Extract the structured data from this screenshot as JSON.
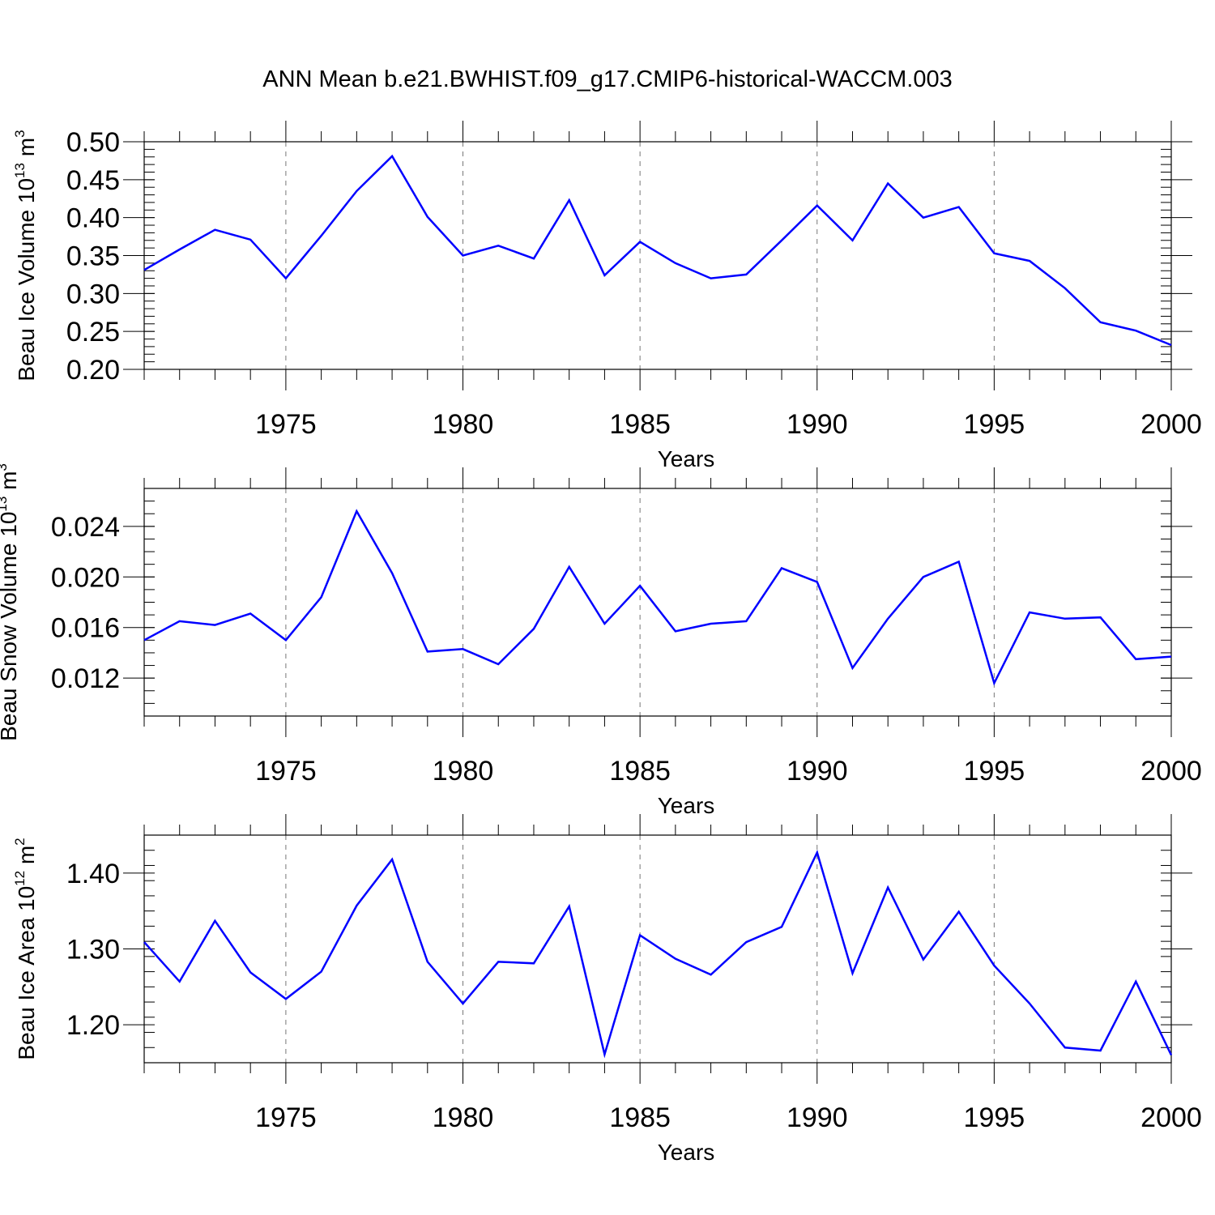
{
  "title": "ANN Mean b.e21.BWHIST.f09_g17.CMIP6-historical-WACCM.003",
  "line_color": "#0000ff",
  "chart_data": [
    {
      "type": "line",
      "ylabel": "Beau Ice Volume 10",
      "ylabel_exp": "13",
      "ylabel_unit": " m",
      "ylabel_unit_exp": "3",
      "xlabel": "Years",
      "xlim": [
        1971,
        2000
      ],
      "ylim": [
        0.2,
        0.5
      ],
      "yticks": [
        0.2,
        0.25,
        0.3,
        0.35,
        0.4,
        0.45,
        0.5
      ],
      "yticklabels": [
        "0.20",
        "0.25",
        "0.30",
        "0.35",
        "0.40",
        "0.45",
        "0.50"
      ],
      "yminor": 0.01,
      "xticks": [
        1975,
        1980,
        1985,
        1990,
        1995,
        2000
      ],
      "xticklabels": [
        "1975",
        "1980",
        "1985",
        "1990",
        "1995",
        "2000"
      ],
      "grid_x": true,
      "x": [
        1971,
        1972,
        1973,
        1974,
        1975,
        1976,
        1977,
        1978,
        1979,
        1980,
        1981,
        1982,
        1983,
        1984,
        1985,
        1986,
        1987,
        1988,
        1989,
        1990,
        1991,
        1992,
        1993,
        1994,
        1995,
        1996,
        1997,
        1998,
        1999,
        2000
      ],
      "values": [
        0.331,
        0.358,
        0.384,
        0.371,
        0.32,
        0.376,
        0.435,
        0.481,
        0.401,
        0.35,
        0.363,
        0.346,
        0.423,
        0.324,
        0.368,
        0.34,
        0.32,
        0.325,
        0.37,
        0.416,
        0.37,
        0.445,
        0.4,
        0.414,
        0.353,
        0.343,
        0.307,
        0.262,
        0.251,
        0.232
      ]
    },
    {
      "type": "line",
      "ylabel": "Beau Snow Volume 10",
      "ylabel_exp": "13",
      "ylabel_unit": " m",
      "ylabel_unit_exp": "3",
      "xlabel": "Years",
      "xlim": [
        1971,
        2000
      ],
      "ylim": [
        0.009,
        0.027
      ],
      "yticks": [
        0.012,
        0.016,
        0.02,
        0.024
      ],
      "yticklabels": [
        "0.012",
        "0.016",
        "0.020",
        "0.024"
      ],
      "yminor": 0.001,
      "xticks": [
        1975,
        1980,
        1985,
        1990,
        1995,
        2000
      ],
      "xticklabels": [
        "1975",
        "1980",
        "1985",
        "1990",
        "1995",
        "2000"
      ],
      "grid_x": true,
      "x": [
        1971,
        1972,
        1973,
        1974,
        1975,
        1976,
        1977,
        1978,
        1979,
        1980,
        1981,
        1982,
        1983,
        1984,
        1985,
        1986,
        1987,
        1988,
        1989,
        1990,
        1991,
        1992,
        1993,
        1994,
        1995,
        1996,
        1997,
        1998,
        1999,
        2000
      ],
      "values": [
        0.015,
        0.0165,
        0.0162,
        0.0171,
        0.015,
        0.0184,
        0.0252,
        0.0203,
        0.0141,
        0.0143,
        0.0131,
        0.0159,
        0.0208,
        0.0163,
        0.0193,
        0.0157,
        0.0163,
        0.0165,
        0.0207,
        0.0196,
        0.0128,
        0.0167,
        0.02,
        0.0212,
        0.0116,
        0.0172,
        0.0167,
        0.0168,
        0.0135,
        0.0137
      ]
    },
    {
      "type": "line",
      "ylabel": "Beau Ice Area 10",
      "ylabel_exp": "12",
      "ylabel_unit": " m",
      "ylabel_unit_exp": "2",
      "xlabel": "Years",
      "xlim": [
        1971,
        2000
      ],
      "ylim": [
        1.15,
        1.45
      ],
      "yticks": [
        1.2,
        1.3,
        1.4
      ],
      "yticklabels": [
        "1.20",
        "1.30",
        "1.40"
      ],
      "yminor": 0.02,
      "xticks": [
        1975,
        1980,
        1985,
        1990,
        1995,
        2000
      ],
      "xticklabels": [
        "1975",
        "1980",
        "1985",
        "1990",
        "1995",
        "2000"
      ],
      "grid_x": true,
      "x": [
        1971,
        1972,
        1973,
        1974,
        1975,
        1976,
        1977,
        1978,
        1979,
        1980,
        1981,
        1982,
        1983,
        1984,
        1985,
        1986,
        1987,
        1988,
        1989,
        1990,
        1991,
        1992,
        1993,
        1994,
        1995,
        1996,
        1997,
        1998,
        1999,
        2000
      ],
      "values": [
        1.309,
        1.257,
        1.337,
        1.269,
        1.234,
        1.27,
        1.357,
        1.418,
        1.283,
        1.228,
        1.283,
        1.281,
        1.356,
        1.161,
        1.318,
        1.287,
        1.266,
        1.309,
        1.329,
        1.427,
        1.268,
        1.381,
        1.286,
        1.349,
        1.278,
        1.228,
        1.17,
        1.166,
        1.257,
        1.16
      ]
    }
  ]
}
